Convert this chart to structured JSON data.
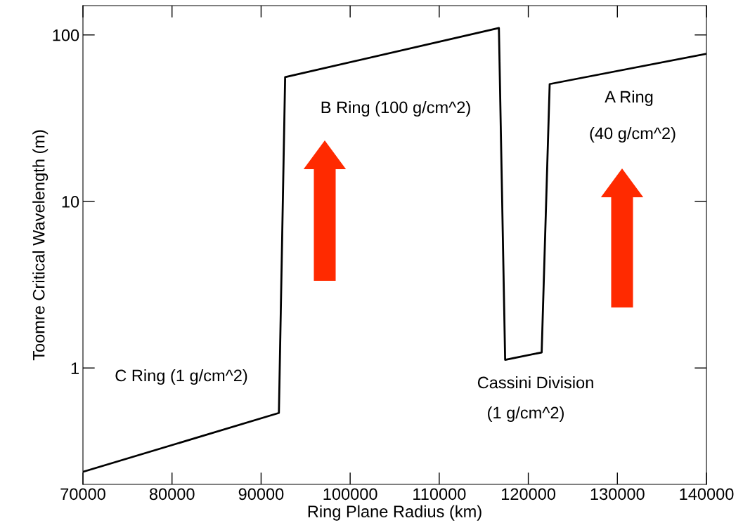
{
  "chart_data": {
    "type": "line",
    "xlabel": "Ring Plane Radius (km)",
    "ylabel": "Toomre Critical Wavelength (m)",
    "x": [
      70000,
      92000,
      92700,
      116700,
      117400,
      121500,
      122400,
      140000
    ],
    "series": [
      {
        "color": "#000000",
        "values": [
          0.238,
          0.537,
          55.8,
          110,
          1.12,
          1.24,
          50.7,
          77
        ]
      }
    ],
    "log": "y",
    "xlim": [
      70000,
      140000
    ],
    "ylim": [
      0.2,
      150
    ],
    "xticks": [
      70000,
      80000,
      90000,
      100000,
      110000,
      120000,
      130000,
      140000
    ],
    "yticks": [
      1,
      10,
      100
    ],
    "grid": false,
    "marker": "none",
    "line_style": "solid",
    "annotations": [
      "C Ring (1 g/cm^2)",
      "B Ring (100 g/cm^2)",
      "A Ring",
      "(40 g/cm^2)",
      "Cassini Division",
      "(1 g/cm^2)"
    ]
  }
}
